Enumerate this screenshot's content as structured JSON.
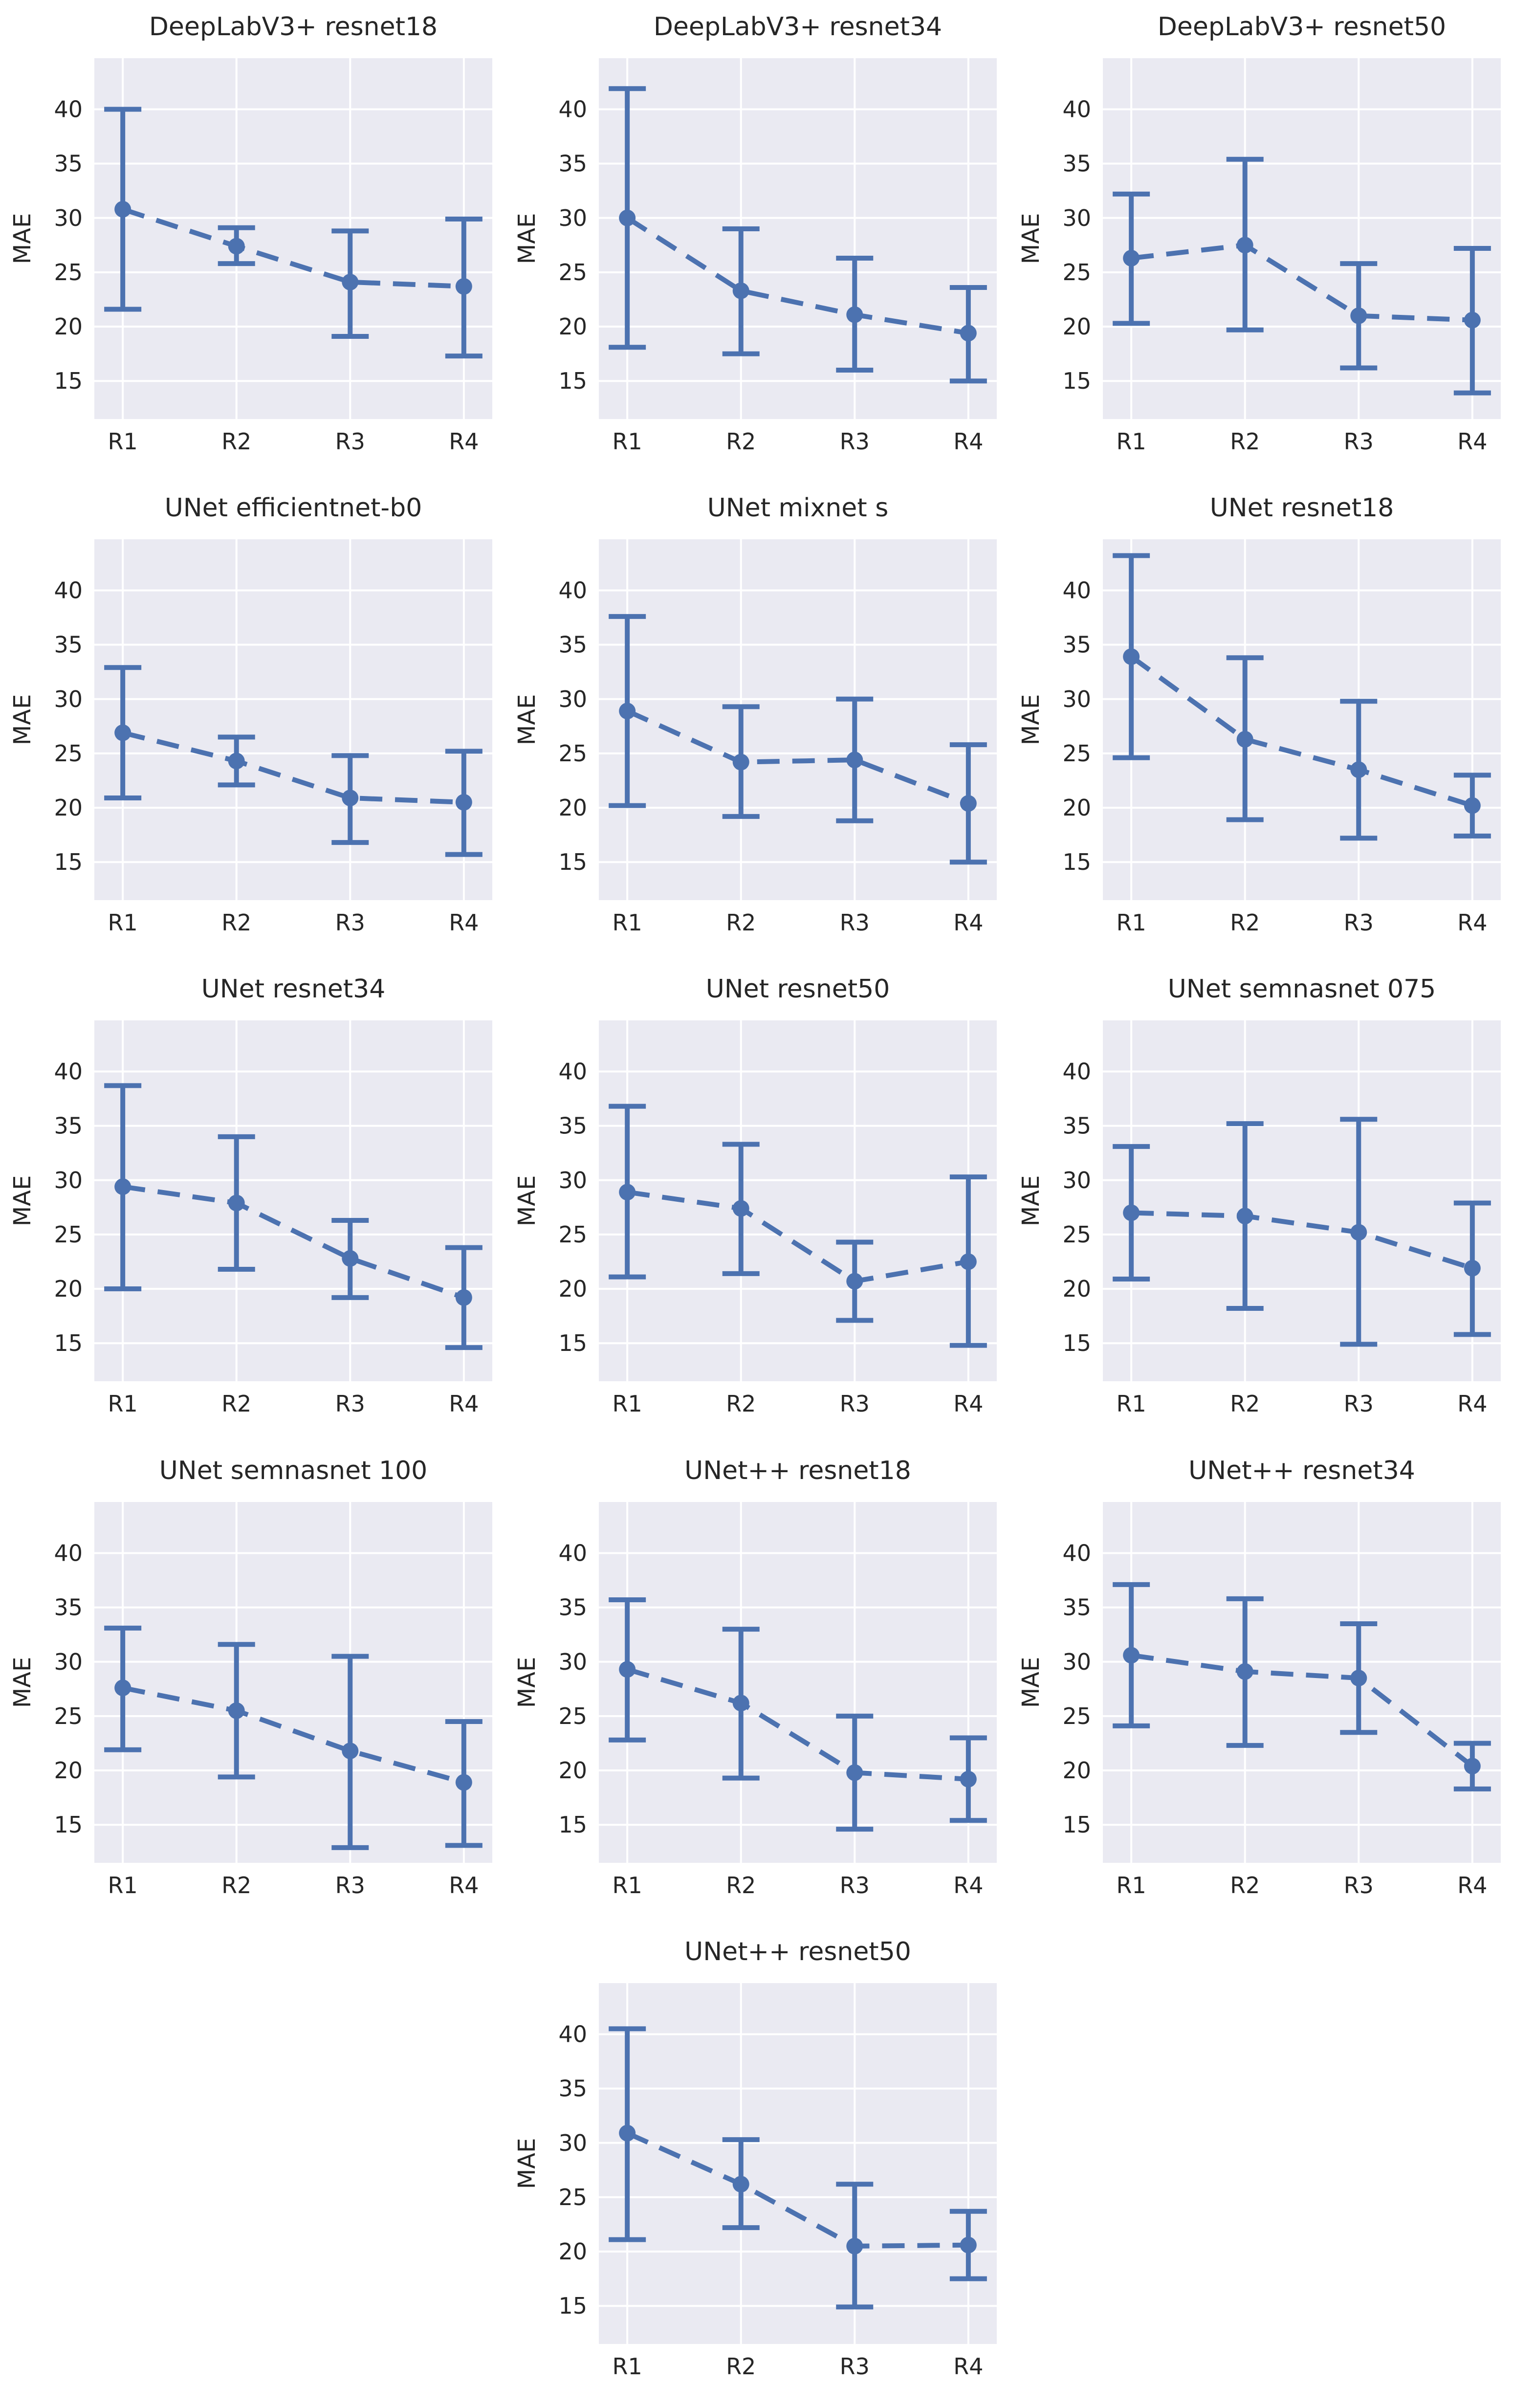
{
  "figure": {
    "ylabel": "MAE",
    "yticks": [
      15,
      20,
      25,
      30,
      35,
      40
    ],
    "ylim": [
      11.5,
      44.7
    ],
    "categories": [
      "R1",
      "R2",
      "R3",
      "R4"
    ],
    "grid": "on",
    "colors": {
      "accent": "#4c72b0",
      "plot_background": "#eaeaf2",
      "gridline": "#ffffff",
      "text": "#262626",
      "figure_background": "#ffffff"
    }
  },
  "chart_data": [
    {
      "type": "line",
      "style": "errorbar-dashed",
      "title": "DeepLabV3+ resnet18",
      "categories": [
        "R1",
        "R2",
        "R3",
        "R4"
      ],
      "means": [
        30.8,
        27.4,
        24.1,
        23.7
      ],
      "err_low": [
        21.6,
        25.8,
        19.1,
        17.3
      ],
      "err_high": [
        40.0,
        29.1,
        28.8,
        29.9
      ]
    },
    {
      "type": "line",
      "style": "errorbar-dashed",
      "title": "DeepLabV3+ resnet34",
      "categories": [
        "R1",
        "R2",
        "R3",
        "R4"
      ],
      "means": [
        30.0,
        23.3,
        21.1,
        19.4
      ],
      "err_low": [
        18.1,
        17.5,
        16.0,
        15.0
      ],
      "err_high": [
        41.9,
        29.0,
        26.3,
        23.6
      ]
    },
    {
      "type": "line",
      "style": "errorbar-dashed",
      "title": "DeepLabV3+ resnet50",
      "categories": [
        "R1",
        "R2",
        "R3",
        "R4"
      ],
      "means": [
        26.3,
        27.5,
        21.0,
        20.6
      ],
      "err_low": [
        20.3,
        19.7,
        16.2,
        13.9
      ],
      "err_high": [
        32.2,
        35.4,
        25.8,
        27.2
      ]
    },
    {
      "type": "line",
      "style": "errorbar-dashed",
      "title": "UNet efficientnet-b0",
      "categories": [
        "R1",
        "R2",
        "R3",
        "R4"
      ],
      "means": [
        26.9,
        24.3,
        20.9,
        20.5
      ],
      "err_low": [
        20.9,
        22.1,
        16.8,
        15.7
      ],
      "err_high": [
        32.9,
        26.5,
        24.8,
        25.2
      ]
    },
    {
      "type": "line",
      "style": "errorbar-dashed",
      "title": "UNet mixnet s",
      "categories": [
        "R1",
        "R2",
        "R3",
        "R4"
      ],
      "means": [
        28.9,
        24.2,
        24.4,
        20.4
      ],
      "err_low": [
        20.2,
        19.2,
        18.8,
        15.0
      ],
      "err_high": [
        37.6,
        29.3,
        30.0,
        25.8
      ]
    },
    {
      "type": "line",
      "style": "errorbar-dashed",
      "title": "UNet resnet18",
      "categories": [
        "R1",
        "R2",
        "R3",
        "R4"
      ],
      "means": [
        33.9,
        26.3,
        23.5,
        20.2
      ],
      "err_low": [
        24.6,
        18.9,
        17.2,
        17.4
      ],
      "err_high": [
        43.2,
        33.8,
        29.8,
        23.0
      ]
    },
    {
      "type": "line",
      "style": "errorbar-dashed",
      "title": "UNet resnet34",
      "categories": [
        "R1",
        "R2",
        "R3",
        "R4"
      ],
      "means": [
        29.4,
        27.9,
        22.8,
        19.2
      ],
      "err_low": [
        20.0,
        21.8,
        19.2,
        14.6
      ],
      "err_high": [
        38.7,
        34.0,
        26.3,
        23.8
      ]
    },
    {
      "type": "line",
      "style": "errorbar-dashed",
      "title": "UNet resnet50",
      "categories": [
        "R1",
        "R2",
        "R3",
        "R4"
      ],
      "means": [
        28.9,
        27.4,
        20.7,
        22.5
      ],
      "err_low": [
        21.1,
        21.4,
        17.1,
        14.8
      ],
      "err_high": [
        36.8,
        33.3,
        24.3,
        30.3
      ]
    },
    {
      "type": "line",
      "style": "errorbar-dashed",
      "title": "UNet semnasnet 075",
      "categories": [
        "R1",
        "R2",
        "R3",
        "R4"
      ],
      "means": [
        27.0,
        26.7,
        25.2,
        21.9
      ],
      "err_low": [
        20.9,
        18.2,
        14.9,
        15.8
      ],
      "err_high": [
        33.1,
        35.2,
        35.6,
        27.9
      ]
    },
    {
      "type": "line",
      "style": "errorbar-dashed",
      "title": "UNet semnasnet 100",
      "categories": [
        "R1",
        "R2",
        "R3",
        "R4"
      ],
      "means": [
        27.6,
        25.5,
        21.8,
        18.9
      ],
      "err_low": [
        21.9,
        19.4,
        12.9,
        13.1
      ],
      "err_high": [
        33.1,
        31.6,
        30.5,
        24.5
      ]
    },
    {
      "type": "line",
      "style": "errorbar-dashed",
      "title": "UNet++ resnet18",
      "categories": [
        "R1",
        "R2",
        "R3",
        "R4"
      ],
      "means": [
        29.3,
        26.2,
        19.8,
        19.2
      ],
      "err_low": [
        22.8,
        19.3,
        14.6,
        15.4
      ],
      "err_high": [
        35.7,
        33.0,
        25.0,
        23.0
      ]
    },
    {
      "type": "line",
      "style": "errorbar-dashed",
      "title": "UNet++ resnet34",
      "categories": [
        "R1",
        "R2",
        "R3",
        "R4"
      ],
      "means": [
        30.6,
        29.1,
        28.5,
        20.4
      ],
      "err_low": [
        24.1,
        22.3,
        23.5,
        18.3
      ],
      "err_high": [
        37.1,
        35.8,
        33.5,
        22.5
      ]
    },
    {
      "type": "line",
      "style": "errorbar-dashed",
      "title": "UNet++ resnet50",
      "categories": [
        "R1",
        "R2",
        "R3",
        "R4"
      ],
      "means": [
        30.9,
        26.2,
        20.5,
        20.6
      ],
      "err_low": [
        21.1,
        22.2,
        14.9,
        17.5
      ],
      "err_high": [
        40.5,
        30.3,
        26.2,
        23.7
      ]
    }
  ]
}
